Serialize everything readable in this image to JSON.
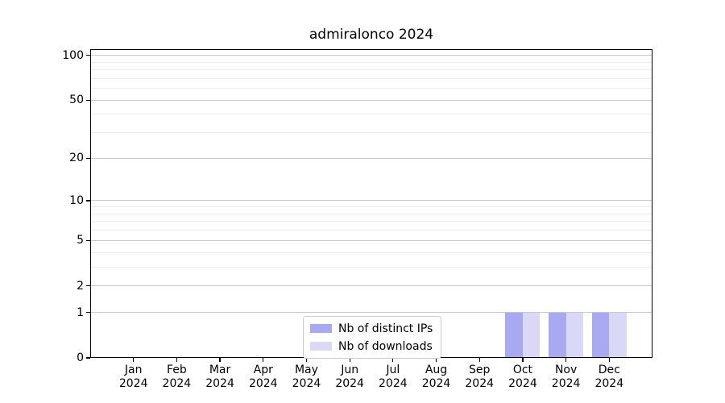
{
  "chart_data": {
    "type": "bar",
    "title": "admiralonco 2024",
    "categories": [
      {
        "month": "Jan",
        "year": "2024"
      },
      {
        "month": "Feb",
        "year": "2024"
      },
      {
        "month": "Mar",
        "year": "2024"
      },
      {
        "month": "Apr",
        "year": "2024"
      },
      {
        "month": "May",
        "year": "2024"
      },
      {
        "month": "Jun",
        "year": "2024"
      },
      {
        "month": "Jul",
        "year": "2024"
      },
      {
        "month": "Aug",
        "year": "2024"
      },
      {
        "month": "Sep",
        "year": "2024"
      },
      {
        "month": "Oct",
        "year": "2024"
      },
      {
        "month": "Nov",
        "year": "2024"
      },
      {
        "month": "Dec",
        "year": "2024"
      }
    ],
    "series": [
      {
        "name": "Nb of distinct IPs",
        "color": "#a9a9f2",
        "values": [
          0,
          0,
          0,
          0,
          0,
          0,
          0,
          0,
          0,
          1,
          1,
          1
        ]
      },
      {
        "name": "Nb of downloads",
        "color": "#d9d9f7",
        "values": [
          0,
          0,
          0,
          0,
          0,
          0,
          0,
          0,
          0,
          1,
          1,
          1
        ]
      }
    ],
    "y_axis": {
      "scale": "log1p",
      "ticks": [
        0,
        1,
        2,
        5,
        10,
        20,
        50,
        100
      ],
      "minor_ticks": [
        3,
        4,
        6,
        7,
        8,
        9,
        30,
        40,
        60,
        70,
        80,
        90
      ],
      "ylim": [
        0,
        110
      ]
    },
    "x_axis": {
      "ticks_per_category": true
    },
    "legend": {
      "position": "lower center"
    },
    "style": {
      "major_grid_color": "#c9c9c9",
      "minor_grid_color": "#ececec",
      "spine_color": "#000000",
      "text_color": "#000000",
      "background": "#ffffff"
    }
  }
}
